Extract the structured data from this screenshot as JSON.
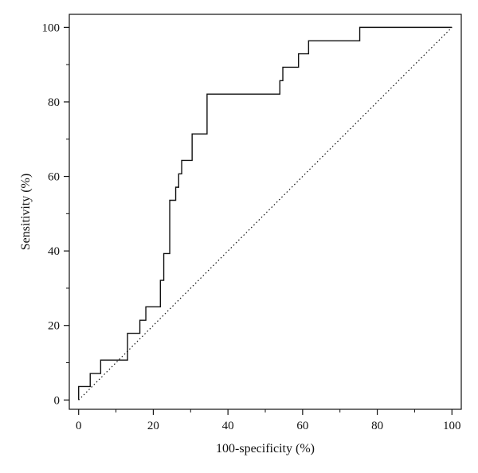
{
  "chart_data": {
    "type": "line",
    "title": "",
    "xlabel": "100-specificity (%)",
    "ylabel": "Sensitivity (%)",
    "xlim": [
      -2.5,
      102.5
    ],
    "ylim": [
      -2.5,
      103.5
    ],
    "x_ticks": [
      0,
      20,
      40,
      60,
      80,
      100
    ],
    "y_ticks": [
      0,
      20,
      40,
      60,
      80,
      100
    ],
    "grid": false,
    "legend": "none",
    "series": [
      {
        "style": "solid",
        "color": "#111111",
        "step": true,
        "points": [
          [
            0,
            0
          ],
          [
            0,
            3.6
          ],
          [
            3.1,
            3.6
          ],
          [
            3.1,
            7.1
          ],
          [
            5.9,
            7.1
          ],
          [
            5.9,
            10.7
          ],
          [
            13.1,
            10.7
          ],
          [
            13.1,
            17.9
          ],
          [
            16.4,
            17.9
          ],
          [
            16.4,
            21.4
          ],
          [
            18.0,
            21.4
          ],
          [
            18.0,
            25.0
          ],
          [
            21.9,
            25.0
          ],
          [
            21.9,
            32.1
          ],
          [
            22.8,
            32.1
          ],
          [
            22.8,
            39.3
          ],
          [
            24.4,
            39.3
          ],
          [
            24.4,
            53.6
          ],
          [
            26.0,
            53.6
          ],
          [
            26.0,
            57.1
          ],
          [
            26.8,
            57.1
          ],
          [
            26.8,
            60.7
          ],
          [
            27.6,
            60.7
          ],
          [
            27.6,
            64.3
          ],
          [
            30.4,
            64.3
          ],
          [
            30.4,
            71.4
          ],
          [
            34.4,
            71.4
          ],
          [
            34.4,
            82.1
          ],
          [
            53.9,
            82.1
          ],
          [
            53.9,
            85.7
          ],
          [
            54.7,
            85.7
          ],
          [
            54.7,
            89.3
          ],
          [
            58.9,
            89.3
          ],
          [
            58.9,
            92.9
          ],
          [
            61.6,
            92.9
          ],
          [
            61.6,
            96.4
          ],
          [
            75.3,
            96.4
          ],
          [
            75.3,
            100
          ],
          [
            100,
            100
          ]
        ]
      },
      {
        "style": "dotted",
        "color": "#111111",
        "points": [
          [
            0,
            0
          ],
          [
            100,
            100
          ]
        ]
      }
    ]
  }
}
